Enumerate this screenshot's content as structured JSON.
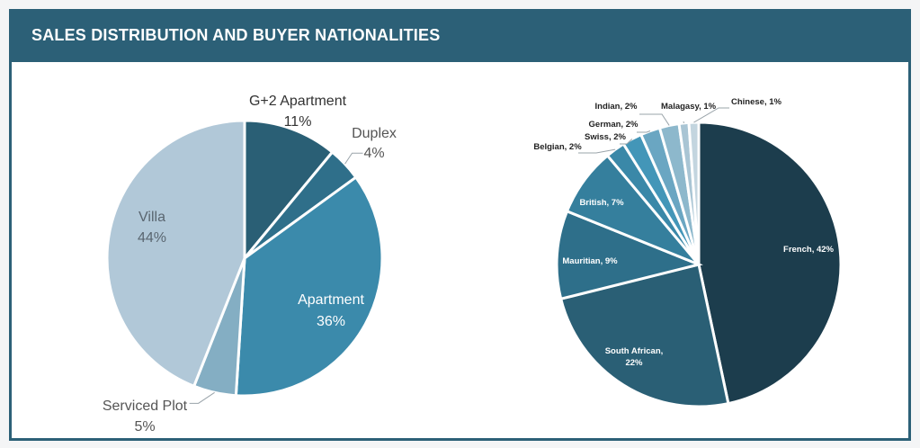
{
  "header": {
    "title": "SALES DISTRIBUTION AND BUYER NATIONALITIES"
  },
  "chart_data": [
    {
      "type": "pie",
      "colors": {
        "G+2 Apartment": "#2a5f75",
        "Duplex": "#2f6f8a",
        "Apartment": "#3b8aab",
        "Serviced Plot": "#84aec3",
        "Villa": "#b1c8d8"
      },
      "slices": [
        {
          "label": "G+2 Apartment",
          "value_label": "11%",
          "value": 11
        },
        {
          "label": "Duplex",
          "value_label": "4%",
          "value": 4
        },
        {
          "label": "Apartment",
          "value_label": "36%",
          "value": 36
        },
        {
          "label": "Serviced Plot",
          "value_label": "5%",
          "value": 5
        },
        {
          "label": "Villa",
          "value_label": "44%",
          "value": 44
        }
      ]
    },
    {
      "type": "pie",
      "slices": [
        {
          "label": "French, 42%",
          "value": 42,
          "color": "#1c3d4d"
        },
        {
          "label": "South African,",
          "label2": "22%",
          "value": 22,
          "color": "#2a5f75"
        },
        {
          "label": "Mauritian, 9%",
          "value": 9,
          "color": "#2e6f8a"
        },
        {
          "label": "British, 7%",
          "value": 7,
          "color": "#357f9d"
        },
        {
          "label": "Belgian, 2%",
          "value": 2,
          "color": "#3a88a8"
        },
        {
          "label": "Swiss, 2%",
          "value": 2,
          "color": "#4396b8"
        },
        {
          "label": "German, 2%",
          "value": 2,
          "color": "#6aa6c2"
        },
        {
          "label": "Indian, 2%",
          "value": 2,
          "color": "#8db8cc"
        },
        {
          "label": "Malagasy, 1%",
          "value": 1,
          "color": "#a9c5d4"
        },
        {
          "label": "Chinese, 1%",
          "value": 1,
          "color": "#c3d5df"
        }
      ]
    }
  ]
}
